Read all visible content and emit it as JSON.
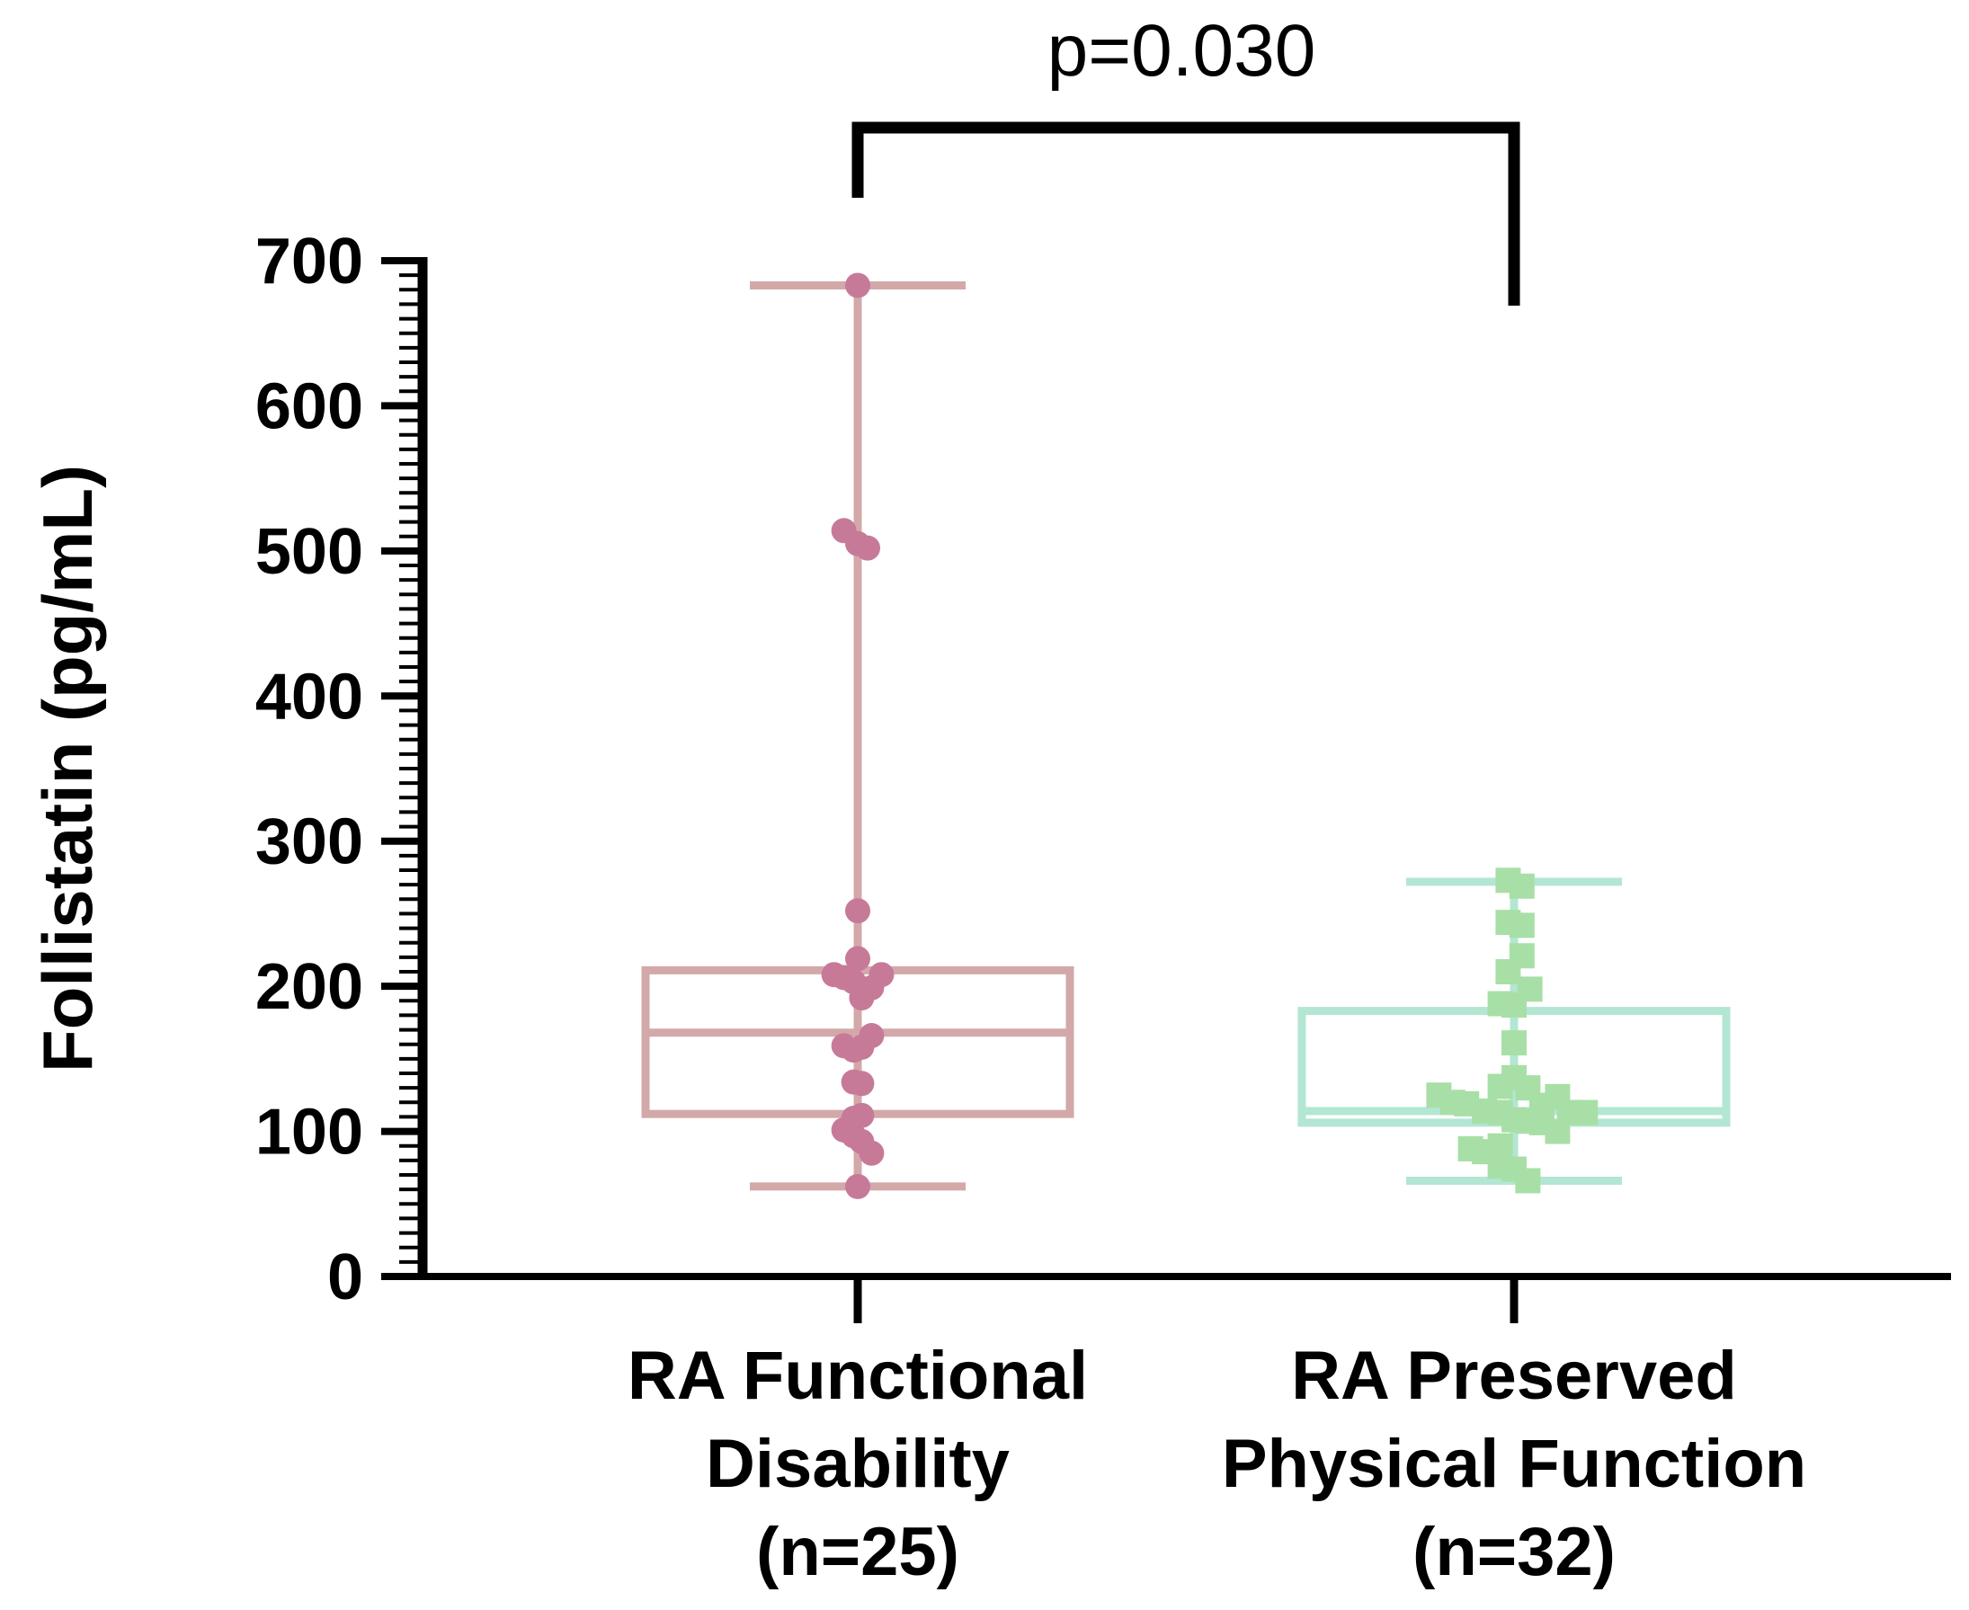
{
  "chart_data": {
    "type": "box",
    "ylabel": "Follistatin (pg/mL)",
    "ylim": [
      0,
      700
    ],
    "yticks": [
      "0",
      "100",
      "200",
      "300",
      "400",
      "500",
      "600",
      "700"
    ],
    "minor_ticks_per_major": 10,
    "annotation": "p=0.030",
    "groups": [
      {
        "name_lines": [
          "RA Functional",
          "Disability",
          "(n=25)"
        ],
        "color": "#d3a8a9",
        "point_color": "#c77a98",
        "marker": "circle",
        "stats": {
          "min": 62,
          "q1": 112,
          "median": 168,
          "q3": 211,
          "max": 683
        },
        "points": [
          [
            0,
            683
          ],
          [
            -0.07,
            514
          ],
          [
            0,
            505
          ],
          [
            0.05,
            502
          ],
          [
            0,
            252
          ],
          [
            0,
            219
          ],
          [
            -0.12,
            208
          ],
          [
            -0.07,
            206
          ],
          [
            -0.02,
            203
          ],
          [
            0.12,
            208
          ],
          [
            0.07,
            199
          ],
          [
            0.02,
            192
          ],
          [
            -0.07,
            159
          ],
          [
            -0.02,
            156
          ],
          [
            0.02,
            158
          ],
          [
            0.07,
            166
          ],
          [
            -0.02,
            134
          ],
          [
            0.02,
            133
          ],
          [
            -0.02,
            109
          ],
          [
            0.02,
            111
          ],
          [
            -0.07,
            101
          ],
          [
            -0.02,
            97
          ],
          [
            0.02,
            93
          ],
          [
            0.07,
            85
          ],
          [
            0,
            62
          ]
        ]
      },
      {
        "name_lines": [
          "RA Preserved",
          "Physical Function",
          "(n=32)"
        ],
        "color": "#b3e6d3",
        "point_color": "#a8dfa6",
        "marker": "square",
        "stats": {
          "min": 66,
          "q1": 106,
          "median": 114,
          "q3": 183,
          "max": 272
        },
        "points": [
          [
            -0.03,
            273
          ],
          [
            0.04,
            269
          ],
          [
            -0.03,
            244
          ],
          [
            0.04,
            242
          ],
          [
            0.04,
            221
          ],
          [
            -0.03,
            210
          ],
          [
            0.08,
            198
          ],
          [
            -0.07,
            188
          ],
          [
            0,
            187
          ],
          [
            0,
            161
          ],
          [
            0,
            137
          ],
          [
            -0.07,
            131
          ],
          [
            0.07,
            130
          ],
          [
            -0.38,
            125
          ],
          [
            0.22,
            124
          ],
          [
            -0.31,
            120
          ],
          [
            -0.24,
            119
          ],
          [
            0.14,
            118
          ],
          [
            -0.15,
            114
          ],
          [
            0.28,
            113
          ],
          [
            0.36,
            113
          ],
          [
            -0.07,
            113
          ],
          [
            0,
            108
          ],
          [
            0.07,
            107
          ],
          [
            0.14,
            106
          ],
          [
            0.22,
            100
          ],
          [
            -0.07,
            90
          ],
          [
            -0.22,
            88
          ],
          [
            -0.15,
            86
          ],
          [
            -0.07,
            76
          ],
          [
            0,
            74
          ],
          [
            0.07,
            66
          ]
        ]
      }
    ]
  }
}
